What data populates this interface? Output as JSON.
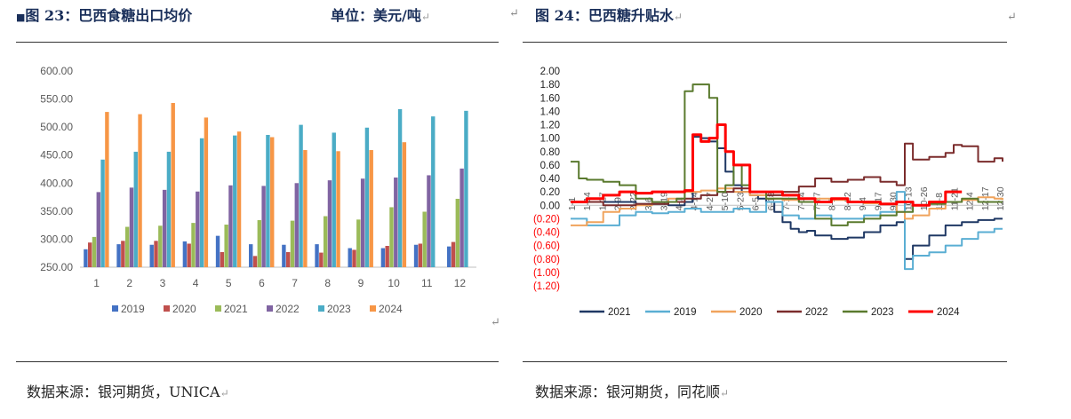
{
  "left_panel": {
    "title_bullet": "■",
    "title": "图 23：巴西食糖出口均价",
    "unit": "单位：美元/吨",
    "source": "数据来源：银河期货，UNICA"
  },
  "right_panel": {
    "title": "图 24：巴西糖升贴水",
    "source": "数据来源：银河期货，同花顺"
  },
  "colors": {
    "2019": "#4472c4",
    "2020": "#c0504d",
    "2021": "#9bbb59",
    "2022": "#8064a2",
    "2023": "#4bacc6",
    "2024": "#f79646",
    "line2021": "#1f3864",
    "line2019": "#5aaed3",
    "line2020": "#f0a35c",
    "line2022": "#7b2c2c",
    "line2023": "#5a7a2e",
    "line2024": "#ff0000"
  },
  "chart_data": [
    {
      "type": "bar",
      "title": "",
      "xlabel": "",
      "ylabel": "",
      "ylim": [
        250,
        600
      ],
      "yticks": [
        "600.00",
        "550.00",
        "500.00",
        "450.00",
        "400.00",
        "350.00",
        "300.00",
        "250.00"
      ],
      "categories": [
        "1",
        "2",
        "3",
        "4",
        "5",
        "6",
        "7",
        "8",
        "9",
        "10",
        "11",
        "12"
      ],
      "legend_position": "bottom",
      "series": [
        {
          "name": "2019",
          "values": [
            282,
            291,
            290,
            296,
            306,
            291,
            290,
            291,
            284,
            284,
            290,
            287
          ]
        },
        {
          "name": "2020",
          "values": [
            294,
            297,
            297,
            292,
            277,
            270,
            277,
            276,
            281,
            288,
            292,
            295
          ]
        },
        {
          "name": "2021",
          "values": [
            304,
            322,
            324,
            329,
            326,
            334,
            333,
            341,
            335,
            357,
            349,
            372
          ]
        },
        {
          "name": "2022",
          "values": [
            384,
            392,
            388,
            385,
            396,
            395,
            400,
            405,
            408,
            410,
            414,
            426
          ]
        },
        {
          "name": "2023",
          "values": [
            442,
            456,
            456,
            480,
            485,
            486,
            504,
            490,
            499,
            532,
            519,
            529
          ]
        },
        {
          "name": "2024",
          "values": [
            527,
            523,
            543,
            517,
            492,
            482,
            459,
            457,
            459,
            473,
            null,
            null
          ]
        }
      ]
    },
    {
      "type": "line",
      "title": "",
      "ylim": [
        -1.2,
        2.0
      ],
      "yticks": [
        "2.00",
        "1.80",
        "1.60",
        "1.40",
        "1.20",
        "1.00",
        "0.80",
        "0.60",
        "0.40",
        "0.20",
        "0.00",
        "(0.20)",
        "(0.40)",
        "(0.60)",
        "(0.80)",
        "(1.00)",
        "(1.20)"
      ],
      "xtick_labels": [
        "1-1",
        "1-14",
        "1-27",
        "2-9",
        "2-22",
        "3-6",
        "3-19",
        "4-1",
        "4-14",
        "4-27",
        "5-10",
        "5-23",
        "6-5",
        "6-18",
        "7-1",
        "7-14",
        "7-27",
        "8-9",
        "8-22",
        "9-4",
        "9-17",
        "9-30",
        "10-13",
        "10-26",
        "11-8",
        "11-21",
        "12-4",
        "12-17",
        "12-30"
      ],
      "legend_position": "bottom",
      "series": [
        {
          "name": "2021",
          "points": [
            [
              0,
              0.05
            ],
            [
              8,
              0.02
            ],
            [
              12,
              0.0
            ],
            [
              14,
              0.05
            ],
            [
              15,
              1.02
            ],
            [
              16,
              1.0
            ],
            [
              17,
              0.95
            ],
            [
              18,
              0.85
            ],
            [
              19,
              0.5
            ],
            [
              20,
              0.3
            ],
            [
              21,
              0.2
            ],
            [
              22,
              0.15
            ],
            [
              23,
              0.1
            ],
            [
              24,
              0.05
            ],
            [
              25,
              -0.1
            ],
            [
              26,
              -0.25
            ],
            [
              27,
              -0.35
            ],
            [
              28,
              -0.4
            ],
            [
              29,
              -0.38
            ],
            [
              30,
              -0.45
            ],
            [
              32,
              -0.5
            ],
            [
              34,
              -0.48
            ],
            [
              36,
              -0.4
            ],
            [
              38,
              -0.3
            ],
            [
              40,
              -0.25
            ],
            [
              41,
              -0.8
            ],
            [
              42,
              -0.6
            ],
            [
              44,
              -0.45
            ],
            [
              46,
              -0.3
            ],
            [
              48,
              -0.25
            ],
            [
              50,
              -0.22
            ],
            [
              52,
              -0.2
            ],
            [
              53,
              -0.2
            ]
          ]
        },
        {
          "name": "2019",
          "points": [
            [
              0,
              -0.2
            ],
            [
              2,
              -0.3
            ],
            [
              4,
              -0.3
            ],
            [
              6,
              -0.15
            ],
            [
              8,
              -0.1
            ],
            [
              10,
              -0.12
            ],
            [
              12,
              -0.1
            ],
            [
              14,
              -0.05
            ],
            [
              16,
              -0.1
            ],
            [
              18,
              -0.1
            ],
            [
              20,
              -0.05
            ],
            [
              22,
              -0.1
            ],
            [
              24,
              0.05
            ],
            [
              26,
              -0.15
            ],
            [
              28,
              -0.2
            ],
            [
              30,
              -0.15
            ],
            [
              32,
              -0.2
            ],
            [
              34,
              -0.2
            ],
            [
              36,
              -0.15
            ],
            [
              38,
              -0.1
            ],
            [
              40,
              0.2
            ],
            [
              41,
              -0.95
            ],
            [
              42,
              -0.75
            ],
            [
              44,
              -0.7
            ],
            [
              46,
              -0.6
            ],
            [
              48,
              -0.5
            ],
            [
              50,
              -0.4
            ],
            [
              52,
              -0.35
            ],
            [
              53,
              -0.35
            ]
          ]
        },
        {
          "name": "2020",
          "points": [
            [
              0,
              -0.3
            ],
            [
              2,
              -0.25
            ],
            [
              4,
              -0.1
            ],
            [
              6,
              -0.05
            ],
            [
              8,
              0.0
            ],
            [
              10,
              0.05
            ],
            [
              12,
              0.1
            ],
            [
              14,
              0.2
            ],
            [
              16,
              0.22
            ],
            [
              18,
              0.25
            ],
            [
              20,
              0.2
            ],
            [
              22,
              0.15
            ],
            [
              24,
              0.1
            ],
            [
              26,
              0.08
            ],
            [
              28,
              0.05
            ],
            [
              30,
              0.1
            ],
            [
              32,
              0.08
            ],
            [
              34,
              0.05
            ],
            [
              36,
              0.03
            ],
            [
              38,
              0.02
            ],
            [
              40,
              -0.1
            ],
            [
              41,
              -0.2
            ],
            [
              42,
              -0.15
            ],
            [
              44,
              -0.05
            ],
            [
              46,
              0.05
            ],
            [
              48,
              0.08
            ],
            [
              50,
              0.12
            ],
            [
              52,
              0.1
            ],
            [
              53,
              0.08
            ]
          ]
        },
        {
          "name": "2022",
          "points": [
            [
              0,
              0.05
            ],
            [
              4,
              0.0
            ],
            [
              8,
              0.02
            ],
            [
              12,
              0.05
            ],
            [
              14,
              0.1
            ],
            [
              16,
              0.15
            ],
            [
              18,
              0.2
            ],
            [
              20,
              0.25
            ],
            [
              22,
              0.2
            ],
            [
              24,
              0.15
            ],
            [
              26,
              0.2
            ],
            [
              28,
              0.28
            ],
            [
              30,
              0.4
            ],
            [
              32,
              0.35
            ],
            [
              34,
              0.38
            ],
            [
              36,
              0.42
            ],
            [
              38,
              0.35
            ],
            [
              40,
              0.3
            ],
            [
              41,
              0.92
            ],
            [
              42,
              0.68
            ],
            [
              44,
              0.72
            ],
            [
              46,
              0.78
            ],
            [
              47,
              0.9
            ],
            [
              48,
              0.88
            ],
            [
              50,
              0.65
            ],
            [
              52,
              0.7
            ],
            [
              53,
              0.65
            ]
          ]
        },
        {
          "name": "2023",
          "points": [
            [
              0,
              0.65
            ],
            [
              1,
              0.4
            ],
            [
              2,
              0.38
            ],
            [
              4,
              0.35
            ],
            [
              6,
              0.3
            ],
            [
              8,
              0.1
            ],
            [
              10,
              0.05
            ],
            [
              12,
              0.05
            ],
            [
              13,
              0.1
            ],
            [
              14,
              1.7
            ],
            [
              15,
              1.8
            ],
            [
              16,
              1.8
            ],
            [
              17,
              1.6
            ],
            [
              18,
              0.2
            ],
            [
              19,
              0.3
            ],
            [
              20,
              0.6
            ],
            [
              21,
              0.3
            ],
            [
              22,
              0.2
            ],
            [
              24,
              0.1
            ],
            [
              26,
              0.1
            ],
            [
              28,
              0.05
            ],
            [
              30,
              -0.2
            ],
            [
              32,
              -0.3
            ],
            [
              34,
              -0.25
            ],
            [
              36,
              -0.2
            ],
            [
              38,
              -0.15
            ],
            [
              40,
              -0.1
            ],
            [
              42,
              0.0
            ],
            [
              44,
              0.02
            ],
            [
              46,
              0.05
            ],
            [
              48,
              0.1
            ],
            [
              50,
              0.05
            ],
            [
              52,
              0.05
            ],
            [
              53,
              0.05
            ]
          ]
        },
        {
          "name": "2024",
          "points": [
            [
              0,
              0.05
            ],
            [
              2,
              0.1
            ],
            [
              4,
              0.15
            ],
            [
              6,
              0.2
            ],
            [
              8,
              0.18
            ],
            [
              10,
              0.2
            ],
            [
              12,
              0.2
            ],
            [
              14,
              0.22
            ],
            [
              15,
              1.05
            ],
            [
              16,
              0.95
            ],
            [
              17,
              1.0
            ],
            [
              18,
              1.2
            ],
            [
              19,
              0.8
            ],
            [
              20,
              0.6
            ],
            [
              22,
              0.2
            ],
            [
              24,
              0.2
            ],
            [
              26,
              0.15
            ],
            [
              28,
              0.1
            ],
            [
              30,
              0.05
            ],
            [
              32,
              0.1
            ],
            [
              34,
              0.05
            ],
            [
              36,
              0.05
            ],
            [
              38,
              0.02
            ],
            [
              40,
              0.05
            ],
            [
              42,
              0.0
            ],
            [
              44,
              0.05
            ],
            [
              46,
              0.2
            ],
            [
              48,
              0.2
            ]
          ]
        }
      ],
      "xmax": 53
    }
  ]
}
